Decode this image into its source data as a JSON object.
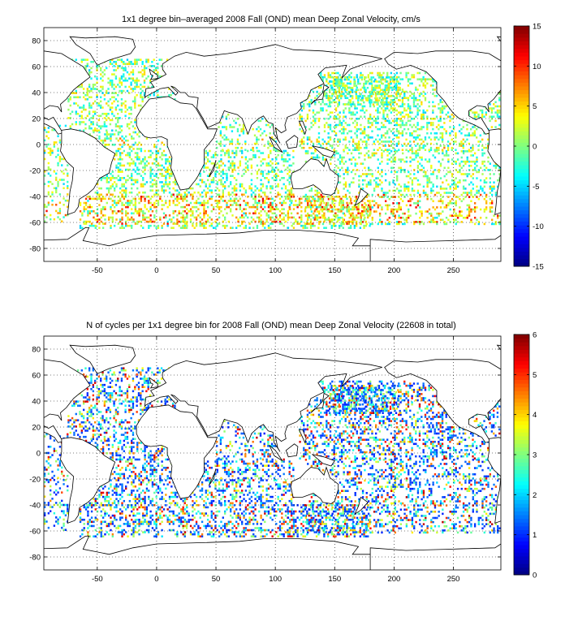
{
  "maps": [
    {
      "title": "1x1 degree bin–averaged 2008 Fall (OND) mean Deep Zonal Velocity, cm/s",
      "x_ticks": [
        "-50",
        "0",
        "50",
        "100",
        "150",
        "200",
        "250"
      ],
      "y_ticks": [
        "80",
        "60",
        "40",
        "20",
        "0",
        "-20",
        "-40",
        "-60",
        "-80"
      ],
      "colorbar": {
        "ticks": [
          "15",
          "10",
          "5",
          "0",
          "-5",
          "-10",
          "-15"
        ],
        "min": -15,
        "max": 15,
        "colormap": "jet"
      },
      "extent": {
        "lon": [
          -95,
          290
        ],
        "lat": [
          -90,
          90
        ]
      },
      "grid": "dotted"
    },
    {
      "title": "N of cycles per 1x1 degree bin for 2008 Fall (OND) mean Deep Zonal Velocity (22608 in total)",
      "x_ticks": [
        "-50",
        "0",
        "50",
        "100",
        "150",
        "200",
        "250"
      ],
      "y_ticks": [
        "80",
        "60",
        "40",
        "20",
        "0",
        "-20",
        "-40",
        "-60",
        "-80"
      ],
      "colorbar": {
        "ticks": [
          "6",
          "5",
          "4",
          "3",
          "2",
          "1",
          "0"
        ],
        "min": 0,
        "max": 6,
        "colormap": "jet"
      },
      "extent": {
        "lon": [
          -95,
          290
        ],
        "lat": [
          -90,
          90
        ]
      },
      "grid": "dotted"
    }
  ]
}
